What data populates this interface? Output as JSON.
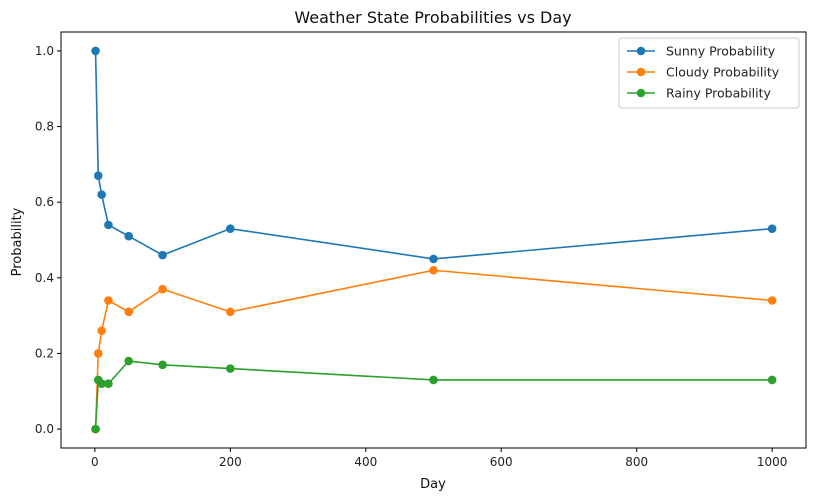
{
  "chart_data": {
    "type": "line",
    "title": "Weather State Probabilities vs Day",
    "xlabel": "Day",
    "ylabel": "Probability",
    "x": [
      1,
      5,
      10,
      20,
      50,
      100,
      200,
      500,
      1000
    ],
    "xlim": [
      -50,
      1050
    ],
    "ylim": [
      -0.05,
      1.05
    ],
    "xticks": [
      0,
      200,
      400,
      600,
      800,
      1000
    ],
    "xtick_labels": [
      "0",
      "200",
      "400",
      "600",
      "800",
      "1000"
    ],
    "yticks": [
      0.0,
      0.2,
      0.4,
      0.6,
      0.8,
      1.0
    ],
    "ytick_labels": [
      "0.0",
      "0.2",
      "0.4",
      "0.6",
      "0.8",
      "1.0"
    ],
    "grid": false,
    "legend_position": "top-right",
    "series": [
      {
        "name": "Sunny Probability",
        "color": "#1f77b4",
        "values": [
          1.0,
          0.67,
          0.62,
          0.54,
          0.51,
          0.46,
          0.53,
          0.45,
          0.53
        ]
      },
      {
        "name": "Cloudy Probability",
        "color": "#ff7f0e",
        "values": [
          0.0,
          0.2,
          0.26,
          0.34,
          0.31,
          0.37,
          0.31,
          0.42,
          0.34
        ]
      },
      {
        "name": "Rainy Probability",
        "color": "#2ca02c",
        "values": [
          0.0,
          0.13,
          0.12,
          0.12,
          0.18,
          0.17,
          0.16,
          0.13,
          0.13
        ]
      }
    ]
  }
}
